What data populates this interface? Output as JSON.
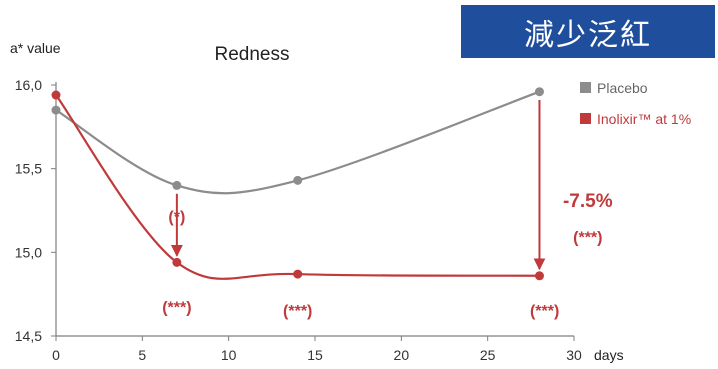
{
  "badge": {
    "text": "減少泛紅"
  },
  "chart_data": {
    "type": "line",
    "title": "Redness",
    "ylabel": "a* value",
    "xlabel": "days",
    "xlim": [
      0,
      30
    ],
    "ylim": [
      14.5,
      16.0
    ],
    "x_ticks": [
      {
        "v": 0,
        "label": "0"
      },
      {
        "v": 5,
        "label": "5"
      },
      {
        "v": 10,
        "label": "10"
      },
      {
        "v": 15,
        "label": "15"
      },
      {
        "v": 20,
        "label": "20"
      },
      {
        "v": 25,
        "label": "25"
      },
      {
        "v": 30,
        "label": "30"
      }
    ],
    "y_ticks": [
      {
        "v": 14.5,
        "label": "14,5"
      },
      {
        "v": 15.0,
        "label": "15,0"
      },
      {
        "v": 15.5,
        "label": "15,5"
      },
      {
        "v": 16.0,
        "label": "16,0"
      }
    ],
    "grid": false,
    "legend": "top-right",
    "series": [
      {
        "name": "Placebo",
        "color": "#8c8c8c",
        "x": [
          0,
          7,
          14,
          28
        ],
        "y": [
          15.85,
          15.4,
          15.43,
          15.96
        ]
      },
      {
        "name": "Inolixir™ at 1%",
        "color": "#c0393b",
        "x": [
          0,
          7,
          14,
          28
        ],
        "y": [
          15.94,
          14.94,
          14.87,
          14.86
        ]
      }
    ],
    "annotations": [
      {
        "text": "(*)",
        "x": 7,
        "y": 15.18,
        "size": 16
      },
      {
        "text": "(***)",
        "x": 7,
        "y": 14.64,
        "size": 16
      },
      {
        "text": "(***)",
        "x": 14,
        "y": 14.62,
        "size": 16
      },
      {
        "text": "(***)",
        "x": 28.3,
        "y": 14.62,
        "size": 16
      },
      {
        "text": "-7.5%",
        "x": 30.8,
        "y": 15.27,
        "size": 19
      },
      {
        "text": "(***)",
        "x": 30.8,
        "y": 15.06,
        "size": 16
      }
    ],
    "arrows": [
      {
        "x": 7,
        "from": 15.35,
        "to": 14.98
      },
      {
        "x": 28,
        "from": 15.91,
        "to": 14.9
      }
    ],
    "annotation_color": "#c0393b"
  }
}
